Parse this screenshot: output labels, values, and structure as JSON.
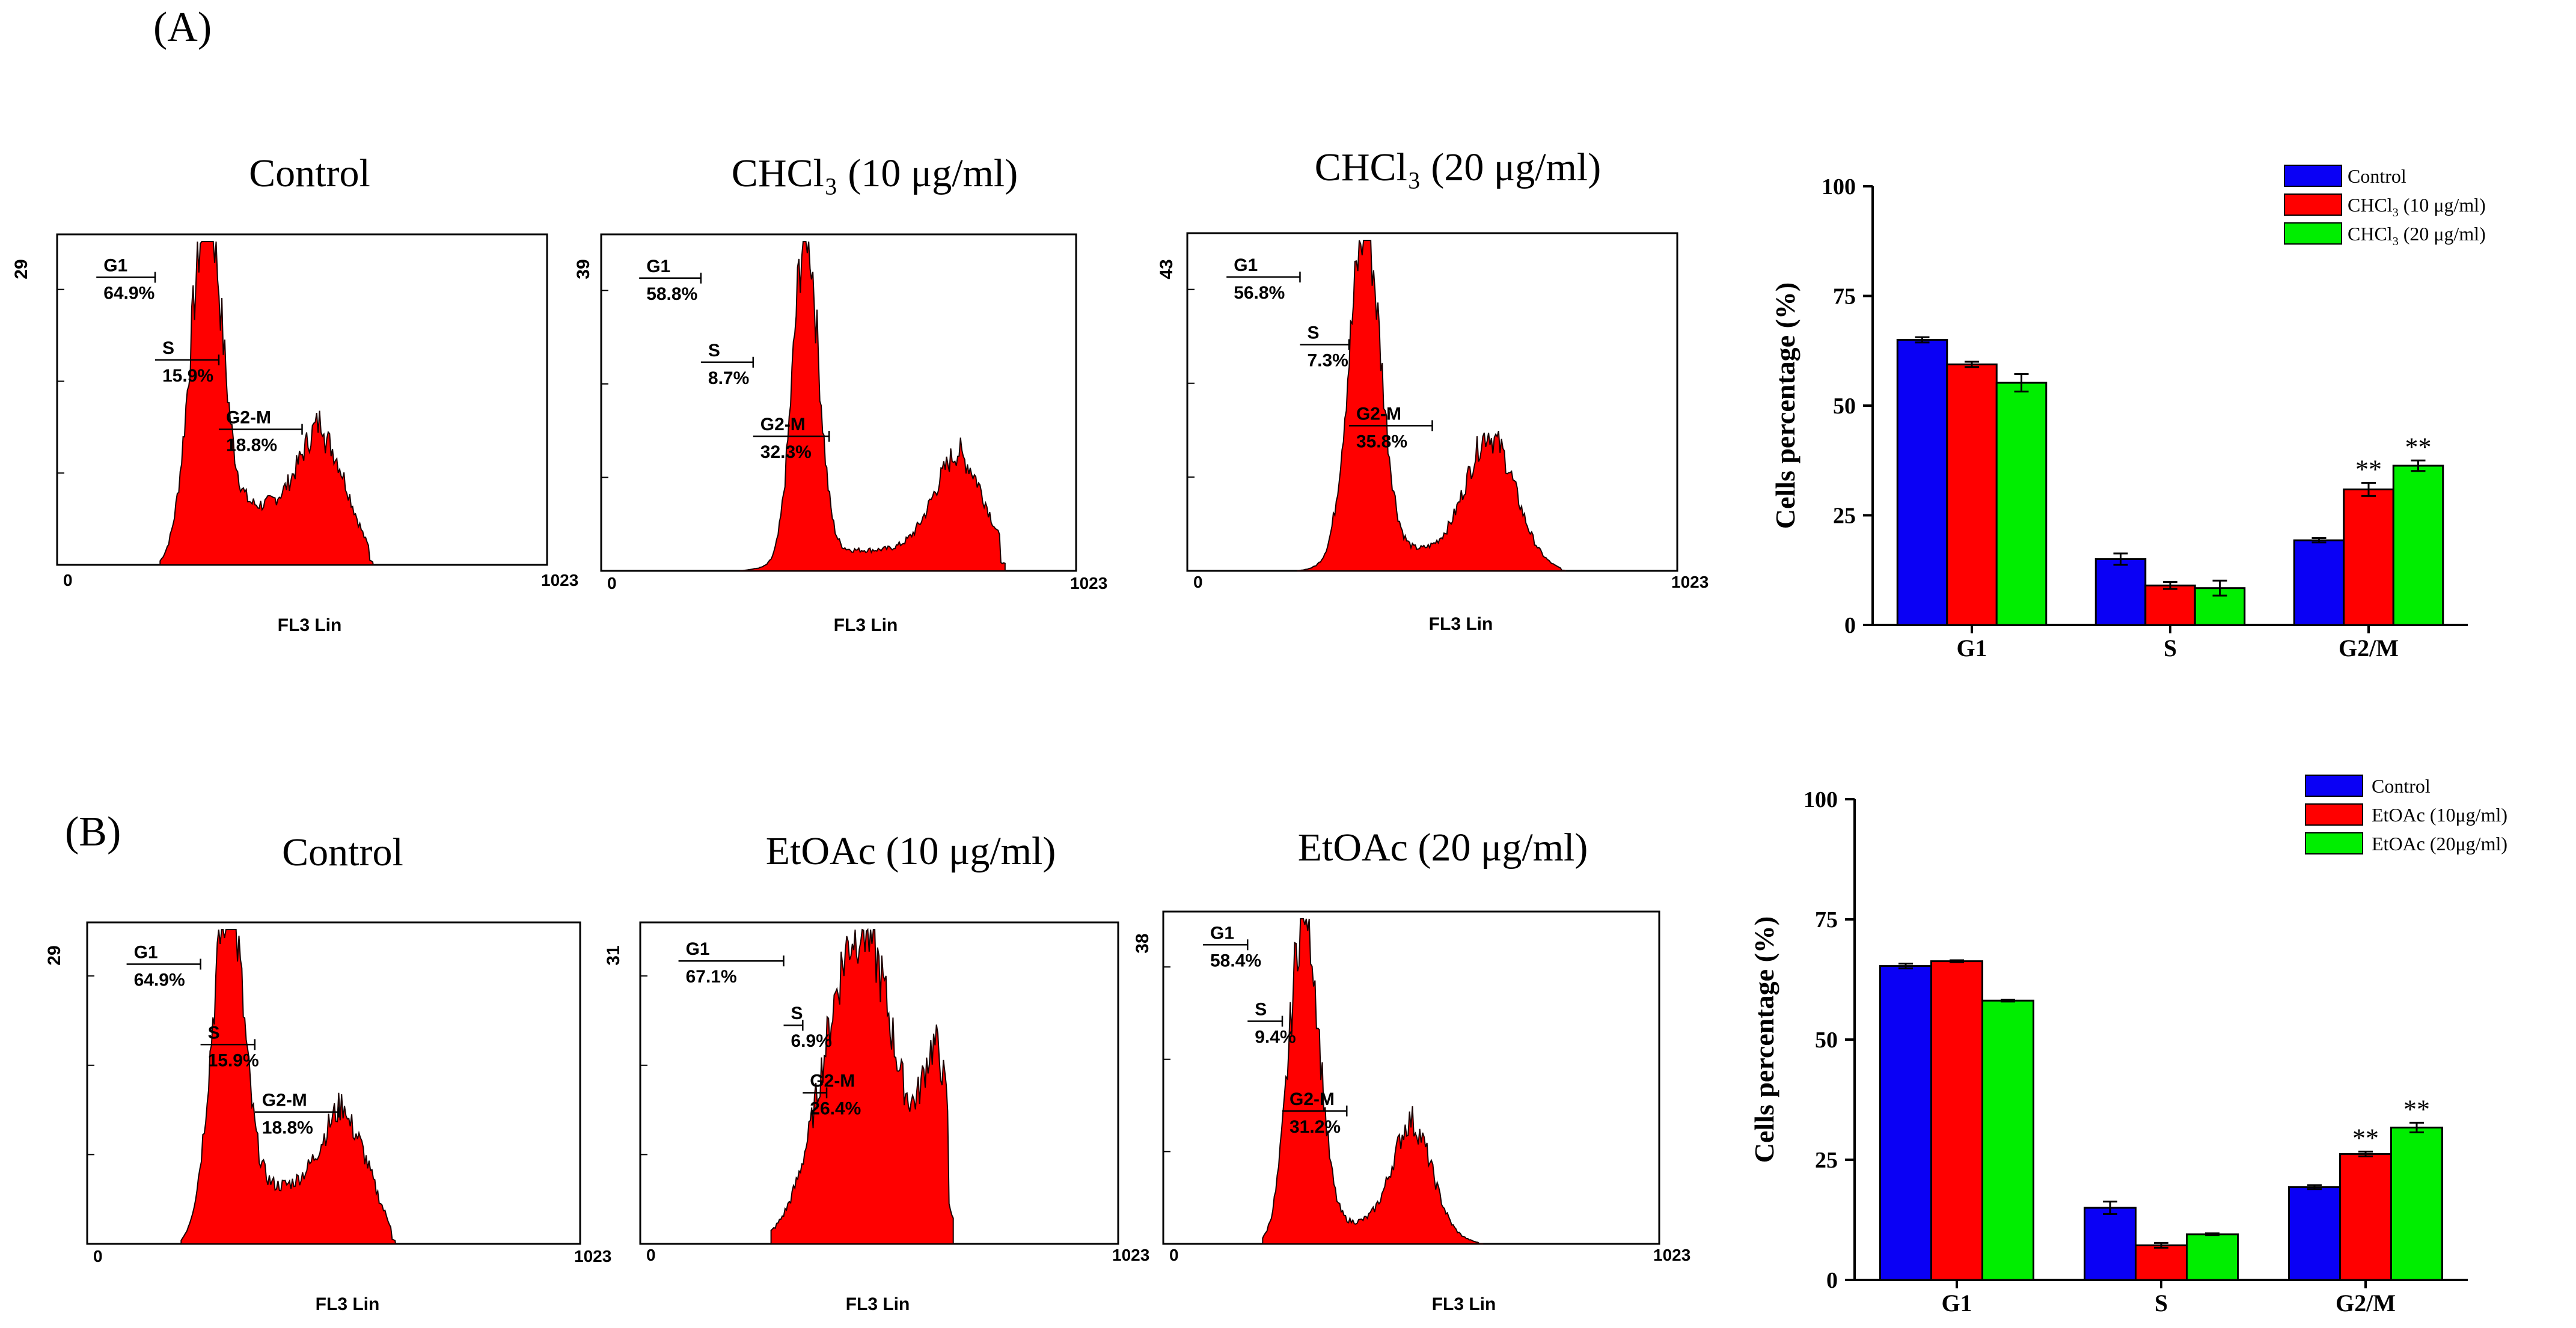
{
  "panel_labels": {
    "a": "(A)",
    "b": "(B)"
  },
  "histogram_axis": {
    "x_label": "FL3 Lin",
    "x_min": "0",
    "x_max": "1023"
  },
  "chart_data": [
    {
      "type": "area",
      "id": "hist-a-control",
      "title": "Control",
      "xlabel": "FL3 Lin",
      "xlim": [
        0,
        1023
      ],
      "ymax_label": "29",
      "gates": [
        {
          "name": "G1",
          "value": "64.9%"
        },
        {
          "name": "S",
          "value": "15.9%"
        },
        {
          "name": "G2-M",
          "value": "18.8%"
        }
      ],
      "profile": {
        "start": 215,
        "end": 660,
        "g1_peak": 310,
        "g1_height": 1.0,
        "g1_width": 32,
        "g2_peak": 560,
        "g2_height": 0.27,
        "g2_width": 48,
        "base": 0.2
      }
    },
    {
      "type": "area",
      "id": "hist-a-chcl3-10",
      "title": "CHCl₃ (10 μg/ml)",
      "xlabel": "FL3 Lin",
      "xlim": [
        0,
        1023
      ],
      "ymax_label": "39",
      "gates": [
        {
          "name": "G1",
          "value": "58.8%"
        },
        {
          "name": "S",
          "value": "8.7%"
        },
        {
          "name": "G2-M",
          "value": "32.3%"
        }
      ],
      "profile": {
        "start": 300,
        "end": 870,
        "g1_peak": 440,
        "g1_height": 1.0,
        "g1_width": 27,
        "g2_peak": 775,
        "g2_height": 0.3,
        "g2_width": 55,
        "base": 0.07
      }
    },
    {
      "type": "area",
      "id": "hist-a-chcl3-20",
      "title": "CHCl₃ (20 μg/ml)",
      "xlabel": "FL3 Lin",
      "xlim": [
        0,
        1023
      ],
      "ymax_label": "43",
      "gates": [
        {
          "name": "G1",
          "value": "56.8%"
        },
        {
          "name": "S",
          "value": "7.3%"
        },
        {
          "name": "G2-M",
          "value": "35.8%"
        }
      ],
      "profile": {
        "start": 230,
        "end": 790,
        "g1_peak": 370,
        "g1_height": 1.0,
        "g1_width": 33,
        "g2_peak": 635,
        "g2_height": 0.36,
        "g2_width": 50,
        "base": 0.07
      }
    },
    {
      "type": "bar",
      "id": "bar-a",
      "categories": [
        "G1",
        "S",
        "G2/M"
      ],
      "ylabel": "Cells percentage (%)",
      "ylim": [
        0,
        100
      ],
      "yticks": [
        0,
        25,
        50,
        75,
        100
      ],
      "series": [
        {
          "name": "Control",
          "label_html": "Control",
          "color": "#0a00f5",
          "values": [
            65,
            15,
            19.3
          ],
          "errors": [
            0.6,
            1.3,
            0.5
          ],
          "sig": [
            "",
            "",
            ""
          ]
        },
        {
          "name": "CHCl3 (10 μg/ml)",
          "label_main": "CHCl",
          "label_sub": "3",
          "label_tail": " (10 μg/ml)",
          "color": "#ff0000",
          "values": [
            59.4,
            9,
            30.9
          ],
          "errors": [
            0.6,
            0.8,
            1.5
          ],
          "sig": [
            "",
            "",
            "**"
          ]
        },
        {
          "name": "CHCl3 (20 μg/ml)",
          "label_main": "CHCl",
          "label_sub": "3",
          "label_tail": " (20 μg/ml)",
          "color": "#00ee00",
          "values": [
            55.2,
            8.4,
            36.3
          ],
          "errors": [
            2,
            1.7,
            1.2
          ],
          "sig": [
            "",
            "",
            "**"
          ]
        }
      ]
    },
    {
      "type": "area",
      "id": "hist-b-control",
      "title": "Control",
      "xlabel": "FL3 Lin",
      "xlim": [
        0,
        1023
      ],
      "ymax_label": "29",
      "gates": [
        {
          "name": "G1",
          "value": "64.9%"
        },
        {
          "name": "S",
          "value": "15.9%"
        },
        {
          "name": "G2-M",
          "value": "18.8%"
        }
      ],
      "profile": {
        "start": 195,
        "end": 640,
        "g1_peak": 290,
        "g1_height": 1.0,
        "g1_width": 32,
        "g2_peak": 540,
        "g2_height": 0.27,
        "g2_width": 48,
        "base": 0.2
      }
    },
    {
      "type": "area",
      "id": "hist-b-etoac-10",
      "title": "EtOAc (10 μg/ml)",
      "xlabel": "FL3 Lin",
      "xlim": [
        0,
        1023
      ],
      "ymax_label": "31",
      "gates": [
        {
          "name": "G1",
          "value": "67.1%"
        },
        {
          "name": "S",
          "value": "6.9%"
        },
        {
          "name": "G2-M",
          "value": "26.4%"
        }
      ],
      "profile": {
        "start": 280,
        "end": 670,
        "g1_peak": 470,
        "g1_height": 1.0,
        "g1_width": 75,
        "g2_peak": 635,
        "g2_height": 0.52,
        "g2_width": 30,
        "base": 0.02
      }
    },
    {
      "type": "area",
      "id": "hist-b-etoac-20",
      "title": "EtOAc (20 μg/ml)",
      "xlabel": "FL3 Lin",
      "xlim": [
        0,
        1023
      ],
      "ymax_label": "38",
      "gates": [
        {
          "name": "G1",
          "value": "58.4%"
        },
        {
          "name": "S",
          "value": "9.4%"
        },
        {
          "name": "G2-M",
          "value": "31.2%"
        }
      ],
      "profile": {
        "start": 205,
        "end": 660,
        "g1_peak": 290,
        "g1_height": 1.0,
        "g1_width": 30,
        "g2_peak": 515,
        "g2_height": 0.32,
        "g2_width": 40,
        "base": 0.07
      }
    },
    {
      "type": "bar",
      "id": "bar-b",
      "categories": [
        "G1",
        "S",
        "G2/M"
      ],
      "ylabel": "Cells percentage (%)",
      "ylim": [
        0,
        100
      ],
      "yticks": [
        0,
        25,
        50,
        75,
        100
      ],
      "series": [
        {
          "name": "Control",
          "label_html": "Control",
          "color": "#0a00f5",
          "values": [
            65.3,
            15,
            19.3
          ],
          "errors": [
            0.5,
            1.3,
            0.4
          ],
          "sig": [
            "",
            "",
            ""
          ]
        },
        {
          "name": "EtOAc (10μg/ml)",
          "label_main": "EtOAc (10μg/ml)",
          "label_sub": "",
          "label_tail": "",
          "color": "#ff0000",
          "values": [
            66.3,
            7.2,
            26.2
          ],
          "errors": [
            0.2,
            0.5,
            0.5
          ],
          "sig": [
            "",
            "",
            "**"
          ]
        },
        {
          "name": "EtOAc (20μg/ml)",
          "label_main": "EtOAc (20μg/ml)",
          "label_sub": "",
          "label_tail": "",
          "color": "#00ee00",
          "values": [
            58.1,
            9.5,
            31.7
          ],
          "errors": [
            0.2,
            0.2,
            1
          ],
          "sig": [
            "",
            "",
            "**"
          ]
        }
      ]
    }
  ]
}
